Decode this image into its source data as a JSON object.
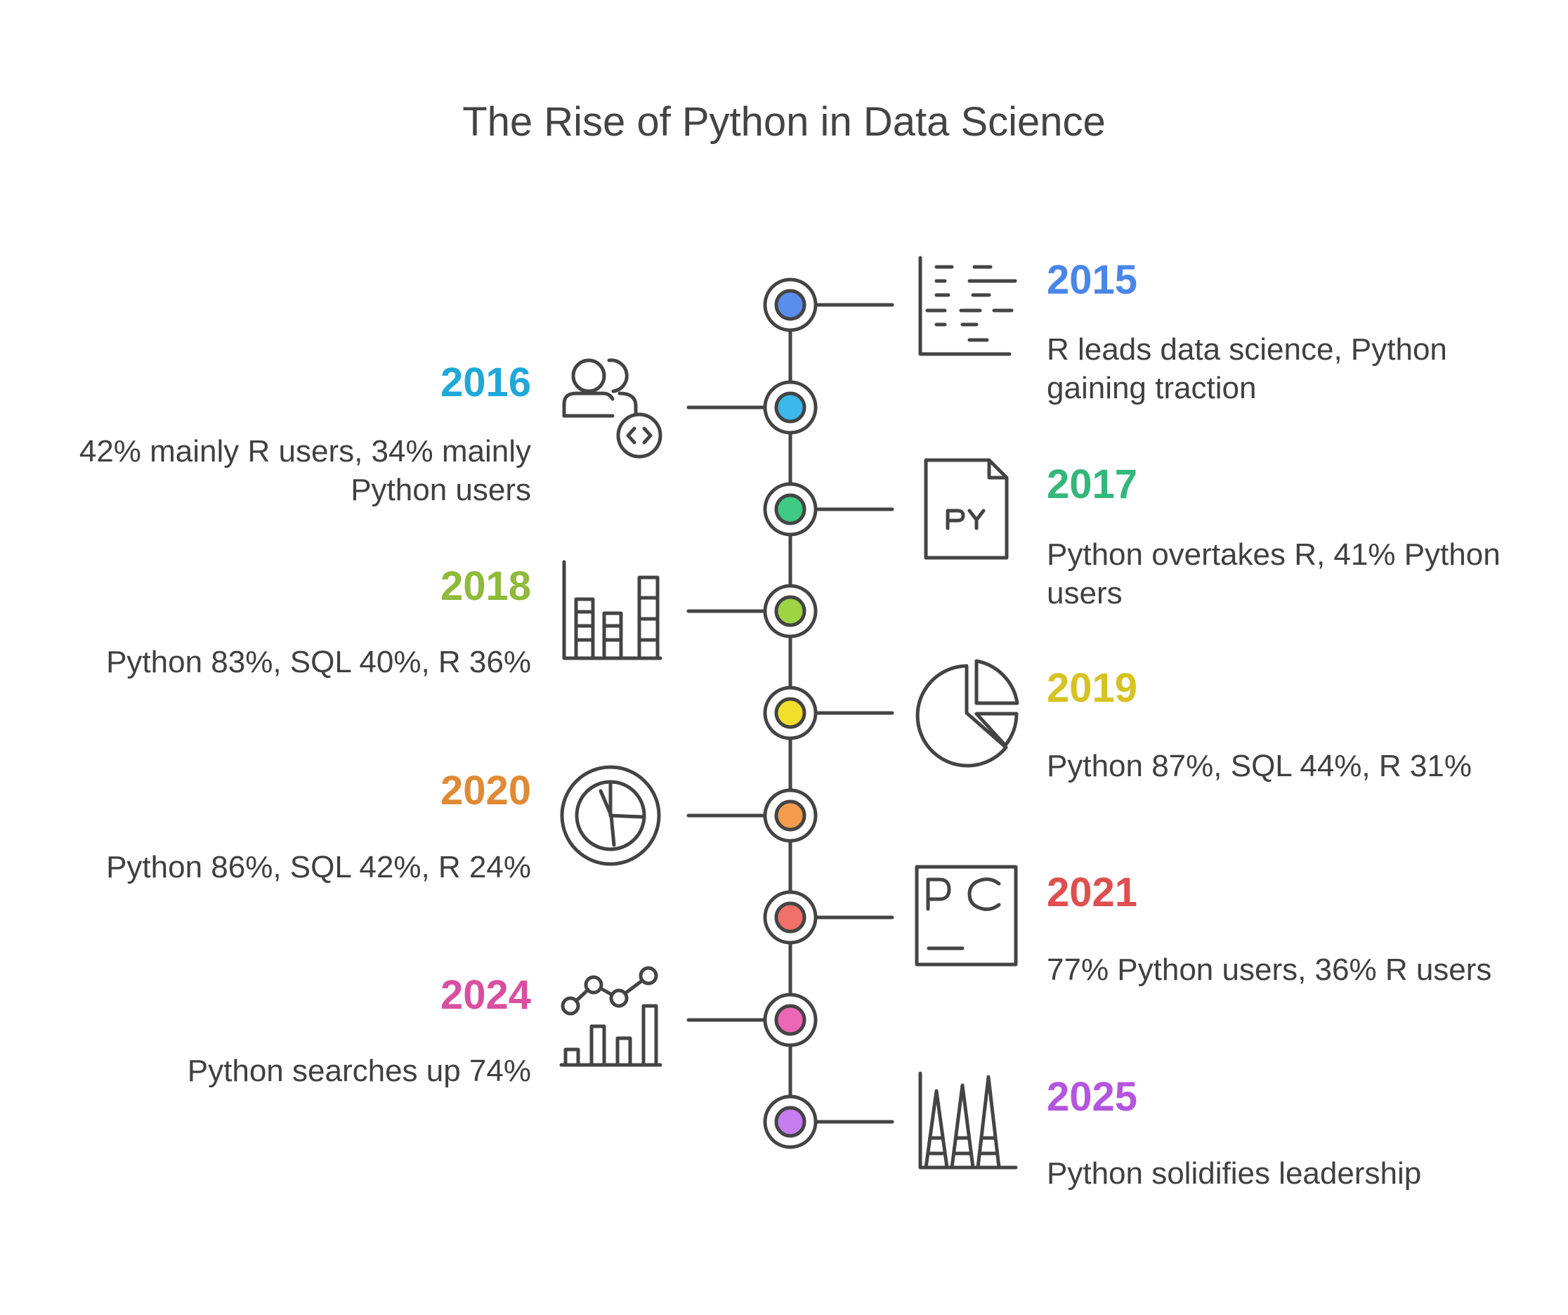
{
  "title": "The Rise of Python in Data Science",
  "events": [
    {
      "year": "2015",
      "text": "R leads data science, Python gaining traction",
      "color": "#4a86e8",
      "dot": "#5b8def",
      "icon": "code-editor-icon"
    },
    {
      "year": "2016",
      "text": "42% mainly R users, 34% mainly Python users",
      "color": "#1fa8d8",
      "dot": "#3cb8ea",
      "icon": "developer-team-icon"
    },
    {
      "year": "2017",
      "text": "Python overtakes R, 41% Python users",
      "color": "#33b77a",
      "dot": "#3fca83",
      "icon": "python-file-icon"
    },
    {
      "year": "2018",
      "text": "Python 83%, SQL 40%, R 36%",
      "color": "#8fba3a",
      "dot": "#9ed443",
      "icon": "bar-chart-icon"
    },
    {
      "year": "2019",
      "text": "Python 87%, SQL 44%, R 31%",
      "color": "#d6c321",
      "dot": "#f2df2c",
      "icon": "pie-chart-icon"
    },
    {
      "year": "2020",
      "text": "Python 86%, SQL 42%, R 24%",
      "color": "#e08a36",
      "dot": "#f39c4d",
      "icon": "circle-pie-chart-icon"
    },
    {
      "year": "2021",
      "text": "77% Python users, 36% R users",
      "color": "#df4f4f",
      "dot": "#f0706a",
      "icon": "pycharm-icon"
    },
    {
      "year": "2024",
      "text": "Python searches up 74%",
      "color": "#d94fa0",
      "dot": "#ee66b6",
      "icon": "trend-chart-icon"
    },
    {
      "year": "2025",
      "text": "Python solidifies leadership",
      "color": "#b455e0",
      "dot": "#c77df0",
      "icon": "peaks-chart-icon"
    }
  ]
}
